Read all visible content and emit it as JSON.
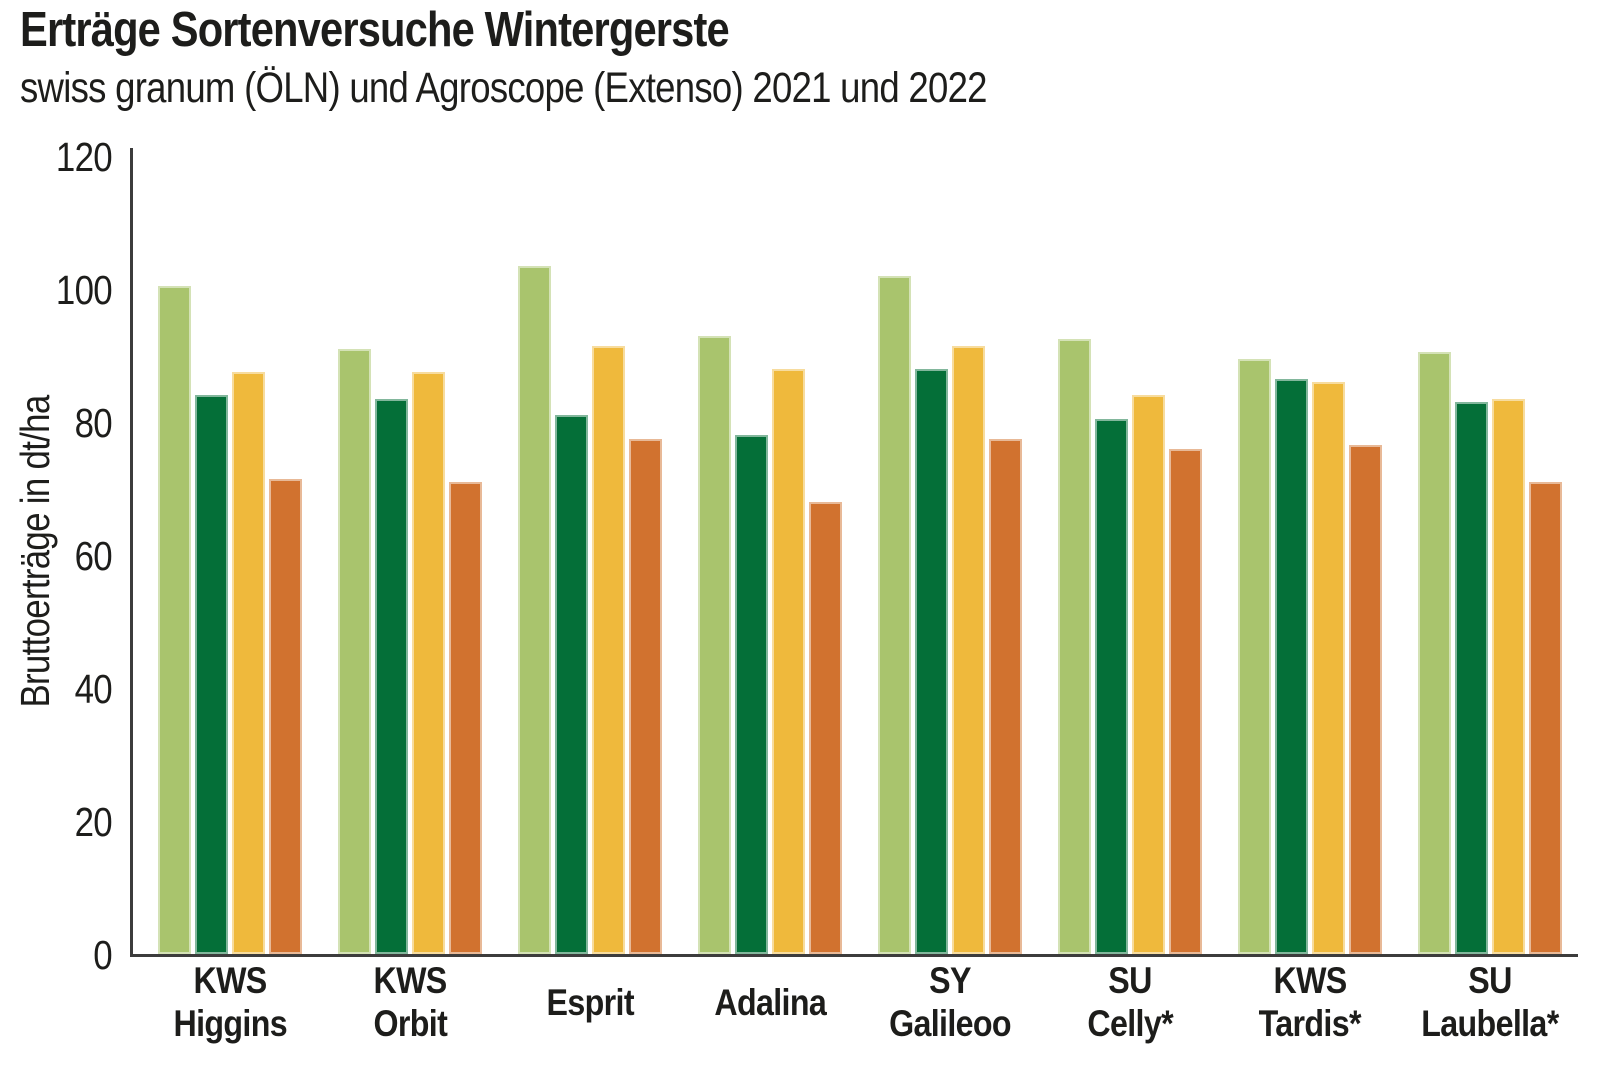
{
  "chart_data": {
    "type": "bar",
    "title": "Erträge Sortenversuche Wintergerste",
    "subtitle": "swiss granum (ÖLN) und Agroscope (Extenso) 2021 und 2022",
    "ylabel": "Bruttoerträge in dt/ha",
    "xlabel": "",
    "ylim": [
      0,
      120
    ],
    "yticks": [
      0,
      20,
      40,
      60,
      80,
      100,
      120
    ],
    "grid": false,
    "legend_position": "none",
    "categories": [
      [
        "KWS",
        "Higgins"
      ],
      [
        "KWS",
        "Orbit"
      ],
      [
        "Esprit"
      ],
      [
        "Adalina"
      ],
      [
        "SY",
        "Galileoo"
      ],
      [
        "SU",
        "Celly*"
      ],
      [
        "KWS",
        "Tardis*"
      ],
      [
        "SU",
        "Laubella*"
      ]
    ],
    "series": [
      {
        "name": "bar-light-green",
        "color": "#a9c46d",
        "values": [
          100.5,
          91,
          103.5,
          93,
          102,
          92.5,
          89.5,
          90.5
        ]
      },
      {
        "name": "bar-dark-green",
        "color": "#046f38",
        "values": [
          84,
          83.5,
          81,
          78,
          88,
          80.5,
          86.5,
          83
        ]
      },
      {
        "name": "bar-yellow",
        "color": "#efb93c",
        "values": [
          87.5,
          87.5,
          91.5,
          88,
          91.5,
          84,
          86,
          83.5
        ]
      },
      {
        "name": "bar-orange",
        "color": "#d1722f",
        "values": [
          71.5,
          71,
          77.5,
          68,
          77.5,
          76,
          76.5,
          71
        ]
      }
    ],
    "colors": {
      "text": "#1d1d1b",
      "axis": "#3c3c3c",
      "background": "#ffffff"
    }
  }
}
